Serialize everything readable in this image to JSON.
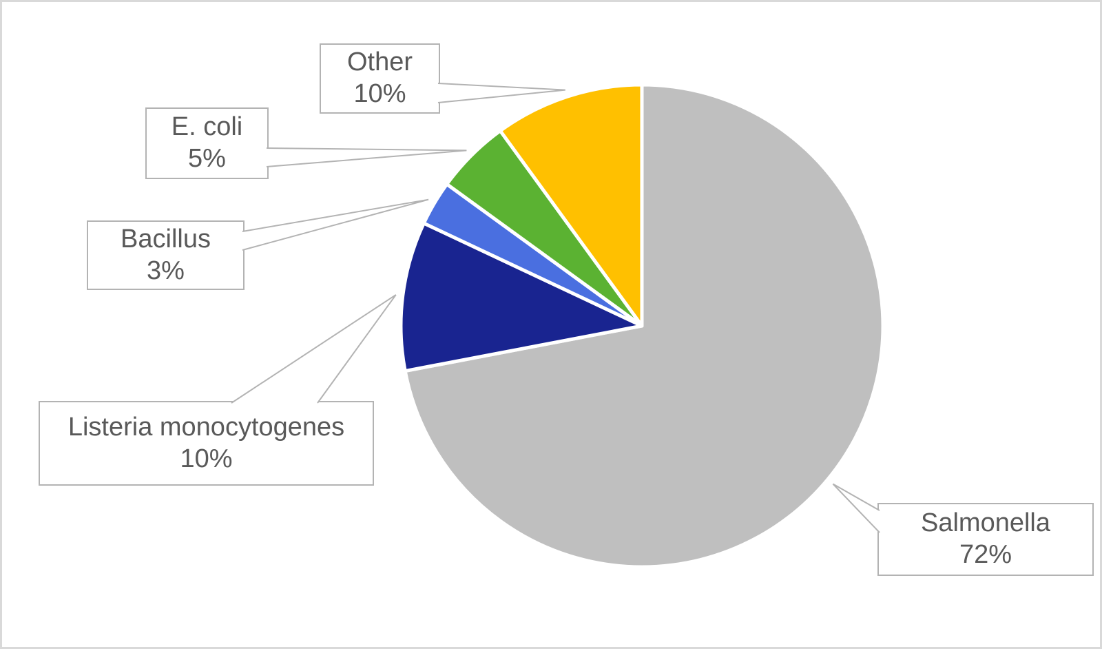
{
  "canvas": {
    "background": "#FFFFFF",
    "frame_color": "#D9D9D9",
    "text_color": "#595959",
    "box_border_color": "#B3B3B3",
    "leader_color": "#B3B3B3"
  },
  "chart_data": {
    "type": "pie",
    "title": "",
    "categories": [
      "Salmonella",
      "Listeria monocytogenes",
      "Bacillus",
      "E. coli",
      "Other"
    ],
    "values": [
      72,
      10,
      3,
      5,
      10
    ],
    "unit": "%",
    "start_angle_deg": 0,
    "direction": "clockwise",
    "colors": [
      "#BFBFBF",
      "#192490",
      "#4A6FE0",
      "#5BB232",
      "#FFC000"
    ],
    "slice_border_color": "#FFFFFF",
    "legend": "none",
    "data_label_style": "callout box with category name and percent",
    "labels": [
      {
        "name": "Salmonella",
        "value_text": "72%"
      },
      {
        "name": "Listeria monocytogenes",
        "value_text": "10%"
      },
      {
        "name": "Bacillus",
        "value_text": "3%"
      },
      {
        "name": "E. coli",
        "value_text": "5%"
      },
      {
        "name": "Other",
        "value_text": "10%"
      }
    ]
  }
}
